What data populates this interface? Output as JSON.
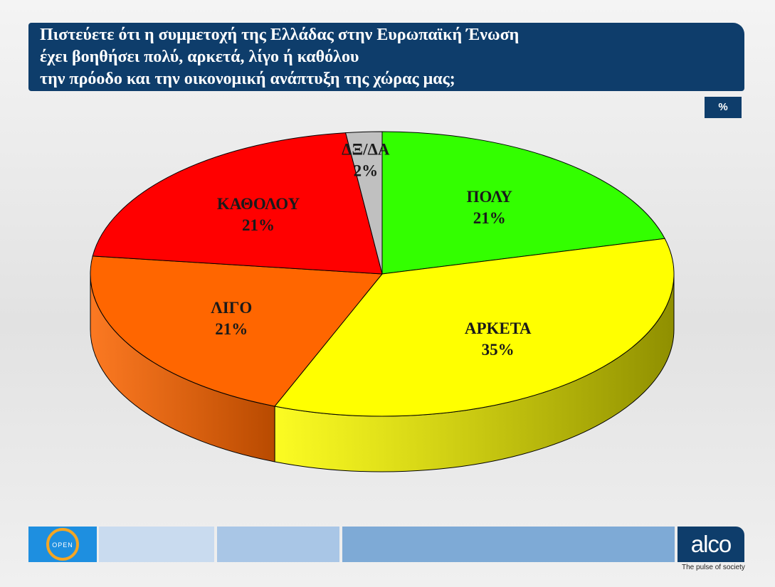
{
  "header": {
    "lines": [
      "Πιστεύετε ότι η συμμετοχή της Ελλάδας στην Ευρωπαϊκή Ένωση",
      "έχει βοηθήσει πολύ, αρκετά, λίγο ή καθόλου",
      "την πρόοδο και την οικονομική ανάπτυξη της χώρας μας;"
    ],
    "unit_badge": "%"
  },
  "chart_data": {
    "type": "pie",
    "three_d": true,
    "slices": [
      {
        "label": "ΠΟΛΥ",
        "value": 21,
        "value_label": "21%",
        "color": "#33ff00",
        "side_color": "#1f8a00"
      },
      {
        "label": "ΑΡΚΕΤΑ",
        "value": 35,
        "value_label": "35%",
        "color": "#ffff00",
        "side_color": "#8f8f00"
      },
      {
        "label": "ΛΙΓΟ",
        "value": 21,
        "value_label": "21%",
        "color": "#ff6600",
        "side_color": "#b84a00"
      },
      {
        "label": "ΚΑΘΟΛΟΥ",
        "value": 21,
        "value_label": "21%",
        "color": "#ff0000",
        "side_color": "#990000"
      },
      {
        "label": "ΔΞ/ΔΑ",
        "value": 2,
        "value_label": "2%",
        "color": "#c0c0c0",
        "side_color": "#7a7a7a"
      }
    ]
  },
  "footer": {
    "open_logo_text": "OPEN",
    "alco_logo_text": "alco",
    "tagline": "The pulse of society",
    "bar_colors": [
      "#c9dbef",
      "#a9c6e6",
      "#7eaad6"
    ]
  }
}
